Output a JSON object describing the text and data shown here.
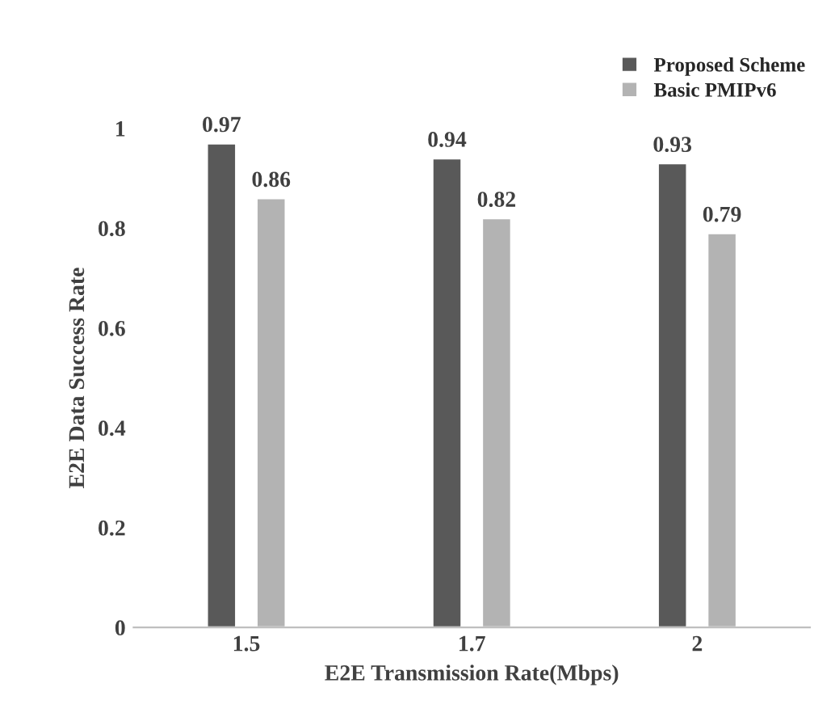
{
  "chart_data": {
    "type": "bar",
    "xlabel": "E2E Transmission Rate(Mbps)",
    "ylabel": "E2E Data Success Rate",
    "categories": [
      "1.5",
      "1.7",
      "2"
    ],
    "series": [
      {
        "name": "Proposed Scheme",
        "color": "#595959",
        "values": [
          0.97,
          0.94,
          0.93
        ]
      },
      {
        "name": "Basic PMIPv6",
        "color": "#b3b3b3",
        "values": [
          0.86,
          0.82,
          0.79
        ]
      }
    ],
    "ylim": [
      0,
      1
    ],
    "yticks": [
      {
        "value": 0,
        "label": "0"
      },
      {
        "value": 0.2,
        "label": "0.2"
      },
      {
        "value": 0.4,
        "label": "0.4"
      },
      {
        "value": 0.6,
        "label": "0.6"
      },
      {
        "value": 0.8,
        "label": "0.8"
      },
      {
        "value": 1,
        "label": "1"
      }
    ],
    "data_labels": true,
    "legend": "top right",
    "grid": false
  }
}
